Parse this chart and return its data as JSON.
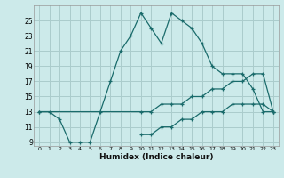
{
  "xlabel": "Humidex (Indice chaleur)",
  "background_color": "#cceaea",
  "grid_color": "#aacccc",
  "line_color": "#1a6b6b",
  "x_hours": [
    0,
    1,
    2,
    3,
    4,
    5,
    6,
    7,
    8,
    9,
    10,
    11,
    12,
    13,
    14,
    15,
    16,
    17,
    18,
    19,
    20,
    21,
    22,
    23
  ],
  "series1": [
    13,
    13,
    12,
    9,
    9,
    9,
    13,
    17,
    21,
    23,
    26,
    24,
    22,
    26,
    25,
    24,
    22,
    19,
    18,
    18,
    18,
    16,
    13,
    13
  ],
  "series2": [
    13,
    null,
    null,
    null,
    null,
    null,
    null,
    null,
    null,
    null,
    13,
    13,
    14,
    14,
    14,
    15,
    15,
    16,
    16,
    17,
    17,
    18,
    18,
    13
  ],
  "series3": [
    null,
    null,
    null,
    null,
    null,
    null,
    null,
    null,
    null,
    null,
    10,
    10,
    11,
    11,
    12,
    12,
    13,
    13,
    13,
    14,
    14,
    14,
    14,
    13
  ],
  "ylim_min": 8.5,
  "ylim_max": 27,
  "yticks": [
    9,
    11,
    13,
    15,
    17,
    19,
    21,
    23,
    25
  ],
  "xlim_min": -0.5,
  "xlim_max": 23.5
}
